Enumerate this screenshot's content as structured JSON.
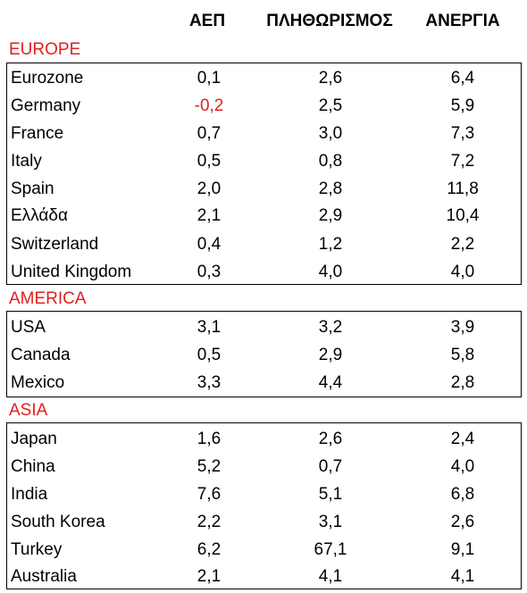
{
  "headers": {
    "gdp": "ΑΕΠ",
    "inflation": "ΠΛΗΘΩΡΙΣΜΟΣ",
    "unemployment": "ΑΝΕΡΓΙΑ"
  },
  "colors": {
    "region_label": "#e02020",
    "negative_value": "#e02020",
    "border": "#000000"
  },
  "europe": {
    "label": "EUROPE",
    "rows": [
      {
        "name": "Eurozone",
        "gdp": "0,1",
        "inflation": "2,6",
        "unemployment": "6,4"
      },
      {
        "name": "Germany",
        "gdp": "-0,2",
        "inflation": "2,5",
        "unemployment": "5,9"
      },
      {
        "name": "France",
        "gdp": "0,7",
        "inflation": "3,0",
        "unemployment": "7,3"
      },
      {
        "name": "Italy",
        "gdp": "0,5",
        "inflation": "0,8",
        "unemployment": "7,2"
      },
      {
        "name": "Spain",
        "gdp": "2,0",
        "inflation": "2,8",
        "unemployment": "11,8"
      },
      {
        "name": "Ελλάδα",
        "gdp": "2,1",
        "inflation": "2,9",
        "unemployment": "10,4"
      },
      {
        "name": "Switzerland",
        "gdp": "0,4",
        "inflation": "1,2",
        "unemployment": "2,2"
      },
      {
        "name": "United Kingdom",
        "gdp": "0,3",
        "inflation": "4,0",
        "unemployment": "4,0"
      }
    ]
  },
  "america": {
    "label": "AMERICA",
    "rows": [
      {
        "name": "USA",
        "gdp": "3,1",
        "inflation": "3,2",
        "unemployment": "3,9"
      },
      {
        "name": "Canada",
        "gdp": "0,5",
        "inflation": "2,9",
        "unemployment": "5,8"
      },
      {
        "name": "Mexico",
        "gdp": "3,3",
        "inflation": "4,4",
        "unemployment": "2,8"
      }
    ]
  },
  "asia": {
    "label": "ASIA",
    "rows": [
      {
        "name": "Japan",
        "gdp": "1,6",
        "inflation": "2,6",
        "unemployment": "2,4"
      },
      {
        "name": "China",
        "gdp": "5,2",
        "inflation": "0,7",
        "unemployment": "4,0"
      },
      {
        "name": "India",
        "gdp": "7,6",
        "inflation": "5,1",
        "unemployment": "6,8"
      },
      {
        "name": "South Korea",
        "gdp": "2,2",
        "inflation": "3,1",
        "unemployment": "2,6"
      },
      {
        "name": "Turkey",
        "gdp": "6,2",
        "inflation": "67,1",
        "unemployment": "9,1"
      },
      {
        "name": "Australia",
        "gdp": "2,1",
        "inflation": "4,1",
        "unemployment": "4,1"
      }
    ]
  }
}
